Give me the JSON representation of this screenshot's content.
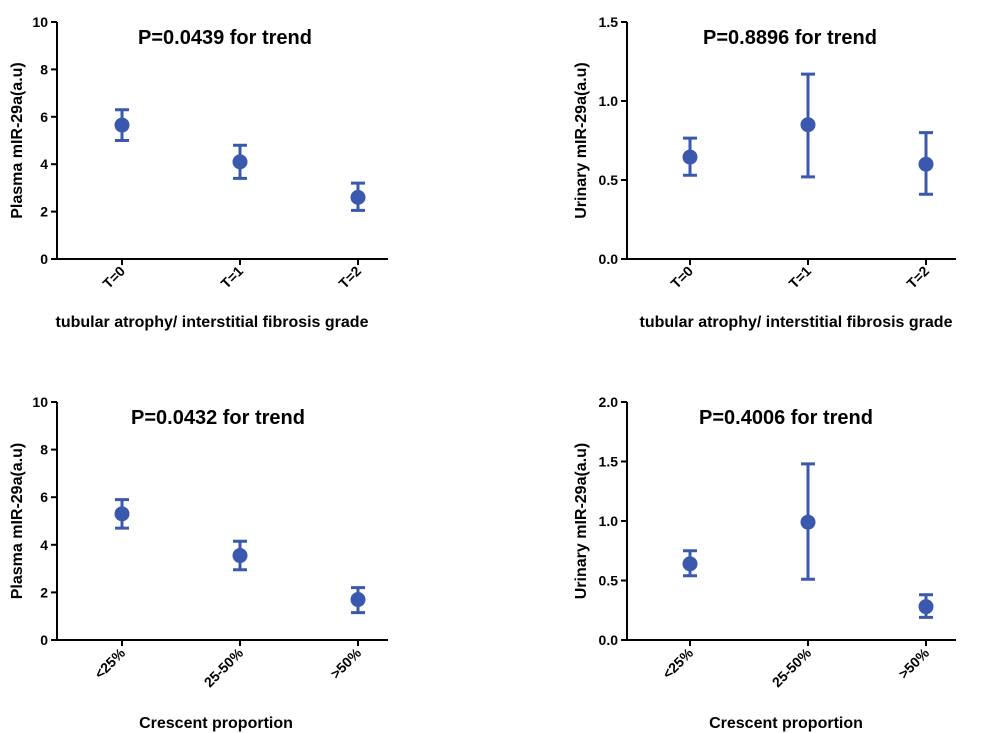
{
  "chart_data": [
    {
      "type": "scatter",
      "title": "P=0.0439 for trend",
      "xlabel": "tubular atrophy/ interstitial fibrosis grade",
      "ylabel": "Plasma mIR-29a(a.u)",
      "categories": [
        "T=0",
        "T=1",
        "T=2"
      ],
      "values": [
        5.65,
        4.1,
        2.6
      ],
      "error_low": [
        5.0,
        3.4,
        2.05
      ],
      "error_high": [
        6.3,
        4.8,
        3.2
      ],
      "ylim": [
        0,
        10
      ],
      "yticks": [
        "0",
        "2",
        "4",
        "6",
        "8",
        "10"
      ],
      "color": "#3a58ad",
      "grid": false
    },
    {
      "type": "scatter",
      "title": "P=0.8896 for trend",
      "xlabel": "tubular atrophy/ interstitial fibrosis grade",
      "ylabel": "Urinary mIR-29a(a.u)",
      "categories": [
        "T=0",
        "T=1",
        "T=2"
      ],
      "values": [
        0.645,
        0.85,
        0.6
      ],
      "error_low": [
        0.53,
        0.52,
        0.41
      ],
      "error_high": [
        0.765,
        1.17,
        0.8
      ],
      "ylim": [
        0,
        1.5
      ],
      "yticks": [
        "0.0",
        "0.5",
        "1.0",
        "1.5"
      ],
      "color": "#3a58ad",
      "grid": false
    },
    {
      "type": "scatter",
      "title": "P=0.0432 for trend",
      "xlabel": "Crescent proportion",
      "ylabel": "Plasma mIR-29a(a.u)",
      "categories": [
        "<25%",
        "25-50%",
        ">50%"
      ],
      "values": [
        5.3,
        3.55,
        1.7
      ],
      "error_low": [
        4.7,
        2.95,
        1.15
      ],
      "error_high": [
        5.9,
        4.15,
        2.2
      ],
      "ylim": [
        0,
        10
      ],
      "yticks": [
        "0",
        "2",
        "4",
        "6",
        "8",
        "10"
      ],
      "color": "#3a58ad",
      "grid": false
    },
    {
      "type": "scatter",
      "title": "P=0.4006 for trend",
      "xlabel": "Crescent proportion",
      "ylabel": "Urinary mIR-29a(a.u)",
      "categories": [
        "<25%",
        "25-50%",
        ">50%"
      ],
      "values": [
        0.64,
        0.99,
        0.28
      ],
      "error_low": [
        0.54,
        0.51,
        0.19
      ],
      "error_high": [
        0.75,
        1.48,
        0.38
      ],
      "ylim": [
        0,
        2
      ],
      "yticks": [
        "0.0",
        "0.5",
        "1.0",
        "1.5",
        "2.0"
      ],
      "color": "#3a58ad",
      "grid": false
    }
  ]
}
